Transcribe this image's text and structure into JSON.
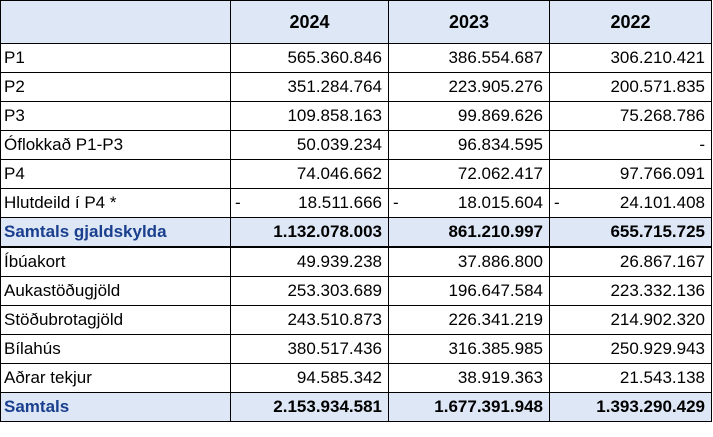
{
  "headers": [
    "",
    "2024",
    "2023",
    "2022"
  ],
  "rows": [
    {
      "label": "P1",
      "values": [
        "565.360.846",
        "386.554.687",
        "306.210.421"
      ],
      "neg": [
        false,
        false,
        false
      ]
    },
    {
      "label": "P2",
      "values": [
        "351.284.764",
        "223.905.276",
        "200.571.835"
      ],
      "neg": [
        false,
        false,
        false
      ]
    },
    {
      "label": "P3",
      "values": [
        "109.858.163",
        "99.869.626",
        "75.268.786"
      ],
      "neg": [
        false,
        false,
        false
      ]
    },
    {
      "label": "Óflokkað P1-P3",
      "values": [
        "50.039.234",
        "96.834.595",
        "-"
      ],
      "neg": [
        false,
        false,
        false
      ]
    },
    {
      "label": "P4",
      "values": [
        "74.046.662",
        "72.062.417",
        "97.766.091"
      ],
      "neg": [
        false,
        false,
        false
      ]
    },
    {
      "label": "Hlutdeild í P4 *",
      "values": [
        "18.511.666",
        "18.015.604",
        "24.101.408"
      ],
      "neg": [
        true,
        true,
        true
      ]
    },
    {
      "label": "Samtals gjaldskylda",
      "values": [
        "1.132.078.003",
        "861.210.997",
        "655.715.725"
      ],
      "neg": [
        false,
        false,
        false
      ],
      "total": true
    },
    {
      "label": "Íbúakort",
      "values": [
        "49.939.238",
        "37.886.800",
        "26.867.167"
      ],
      "neg": [
        false,
        false,
        false
      ],
      "thick": true
    },
    {
      "label": "Aukastöðugjöld",
      "values": [
        "253.303.689",
        "196.647.584",
        "223.332.136"
      ],
      "neg": [
        false,
        false,
        false
      ]
    },
    {
      "label": "Stöðubrotagjöld",
      "values": [
        "243.510.873",
        "226.341.219",
        "214.902.320"
      ],
      "neg": [
        false,
        false,
        false
      ]
    },
    {
      "label": "Bílahús",
      "values": [
        "380.517.436",
        "316.385.985",
        "250.929.943"
      ],
      "neg": [
        false,
        false,
        false
      ]
    },
    {
      "label": "Aðrar tekjur",
      "values": [
        "94.585.342",
        "38.919.363",
        "21.543.138"
      ],
      "neg": [
        false,
        false,
        false
      ]
    },
    {
      "label": "Samtals",
      "values": [
        "2.153.934.581",
        "1.677.391.948",
        "1.393.290.429"
      ],
      "neg": [
        false,
        false,
        false
      ],
      "total": true
    }
  ],
  "negative_sign": "-"
}
